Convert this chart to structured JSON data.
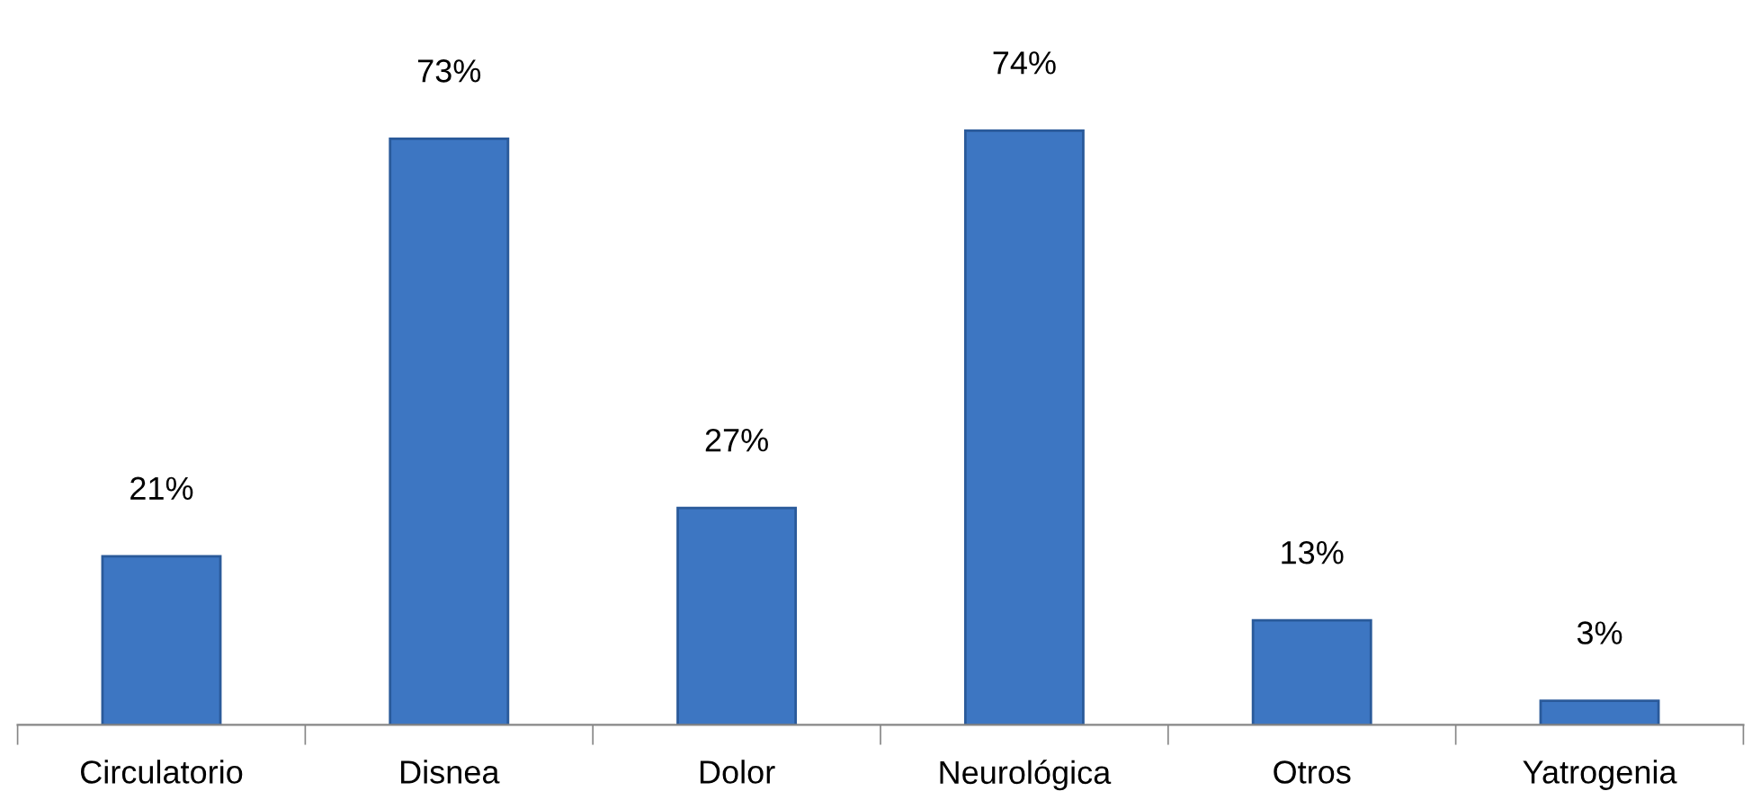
{
  "chart_data": {
    "type": "bar",
    "categories": [
      "Circulatorio",
      "Disnea",
      "Dolor",
      "Neurológica",
      "Otros",
      "Yatrogenia"
    ],
    "values": [
      21,
      73,
      27,
      74,
      13,
      3
    ],
    "value_labels": [
      "21%",
      "73%",
      "27%",
      "74%",
      "13%",
      "3%"
    ],
    "color": "#3d76c2",
    "grid": false,
    "legend": false
  }
}
